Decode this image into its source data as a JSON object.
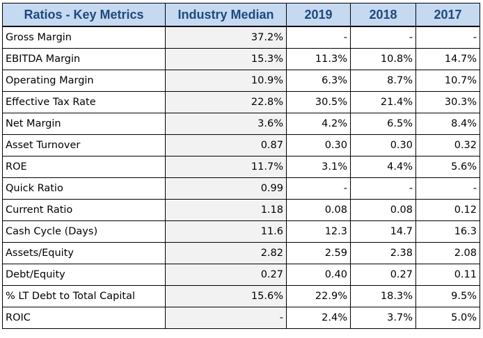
{
  "table": {
    "headers": [
      "Ratios - Key Metrics",
      "Industry Median",
      "2019",
      "2018",
      "2017"
    ],
    "rows": [
      {
        "metric": "Gross Margin",
        "median": "37.2%",
        "y2019": "-",
        "y2018": "-",
        "y2017": "-"
      },
      {
        "metric": "EBITDA Margin",
        "median": "15.3%",
        "y2019": "11.3%",
        "y2018": "10.8%",
        "y2017": "14.7%"
      },
      {
        "metric": "Operating Margin",
        "median": "10.9%",
        "y2019": "6.3%",
        "y2018": "8.7%",
        "y2017": "10.7%"
      },
      {
        "metric": "Effective Tax Rate",
        "median": "22.8%",
        "y2019": "30.5%",
        "y2018": "21.4%",
        "y2017": "30.3%"
      },
      {
        "metric": "Net Margin",
        "median": "3.6%",
        "y2019": "4.2%",
        "y2018": "6.5%",
        "y2017": "8.4%"
      },
      {
        "metric": "Asset Turnover",
        "median": "0.87",
        "y2019": "0.30",
        "y2018": "0.30",
        "y2017": "0.32"
      },
      {
        "metric": "ROE",
        "median": "11.7%",
        "y2019": "3.1%",
        "y2018": "4.4%",
        "y2017": "5.6%"
      },
      {
        "metric": "Quick Ratio",
        "median": "0.99",
        "y2019": "-",
        "y2018": "-",
        "y2017": "-"
      },
      {
        "metric": "Current Ratio",
        "median": "1.18",
        "y2019": "0.08",
        "y2018": "0.08",
        "y2017": "0.12"
      },
      {
        "metric": "Cash Cycle (Days)",
        "median": "11.6",
        "y2019": "12.3",
        "y2018": "14.7",
        "y2017": "16.3"
      },
      {
        "metric": "Assets/Equity",
        "median": "2.82",
        "y2019": "2.59",
        "y2018": "2.38",
        "y2017": "2.08"
      },
      {
        "metric": "Debt/Equity",
        "median": "0.27",
        "y2019": "0.40",
        "y2018": "0.27",
        "y2017": "0.11"
      },
      {
        "metric": "% LT Debt to Total Capital",
        "median": "15.6%",
        "y2019": "22.9%",
        "y2018": "18.3%",
        "y2017": "9.5%"
      },
      {
        "metric": "ROIC",
        "median": "-",
        "y2019": "2.4%",
        "y2018": "3.7%",
        "y2017": "5.0%"
      }
    ]
  },
  "colors": {
    "header_bg": "#c5d9f1",
    "header_text": "#1f497d",
    "median_bg": "#f2f2f2"
  }
}
